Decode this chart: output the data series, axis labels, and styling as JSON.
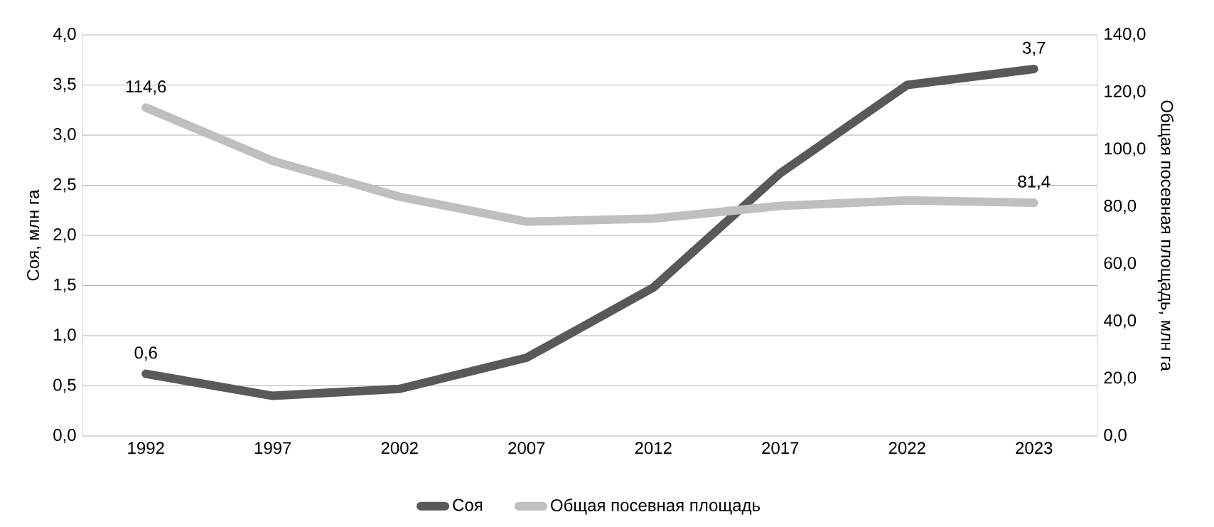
{
  "chart_data": {
    "type": "line",
    "categories": [
      "1992",
      "1997",
      "2002",
      "2007",
      "2012",
      "2017",
      "2022",
      "2023"
    ],
    "ylabel": "Соя, млн га",
    "y2label": "Общая посевная площадь, млн га",
    "ylim": [
      0,
      4
    ],
    "yticks": [
      {
        "value": 0,
        "label": "0,0"
      },
      {
        "value": 0.5,
        "label": "0,5"
      },
      {
        "value": 1,
        "label": "1,0"
      },
      {
        "value": 1.5,
        "label": "1,5"
      },
      {
        "value": 2,
        "label": "2,0"
      },
      {
        "value": 2.5,
        "label": "2,5"
      },
      {
        "value": 3,
        "label": "3,0"
      },
      {
        "value": 3.5,
        "label": "3,5"
      },
      {
        "value": 4,
        "label": "4,0"
      }
    ],
    "y2lim": [
      0,
      140
    ],
    "y2ticks": [
      {
        "value": 0,
        "label": "0,0"
      },
      {
        "value": 20,
        "label": "20,0"
      },
      {
        "value": 40,
        "label": "40,0"
      },
      {
        "value": 60,
        "label": "60,0"
      },
      {
        "value": 80,
        "label": "80,0"
      },
      {
        "value": 100,
        "label": "100,0"
      },
      {
        "value": 120,
        "label": "120,0"
      },
      {
        "value": 140,
        "label": "140,0"
      }
    ],
    "grid": "y",
    "legend": "bottom",
    "marker": "none",
    "line_style": "solid",
    "series": [
      {
        "name": "Соя",
        "color": "#595959",
        "values": [
          0.62,
          0.4,
          0.47,
          0.78,
          1.48,
          2.62,
          3.5,
          3.66
        ],
        "value_labels": [
          "0,6",
          null,
          null,
          null,
          null,
          null,
          null,
          "3,7"
        ]
      },
      {
        "name": "Общая посевная площадь",
        "color": "#bfbfbf",
        "axis": "y2",
        "values": [
          114.6,
          96,
          83.5,
          74.8,
          75.9,
          80.3,
          82.2,
          81.4
        ],
        "value_labels": [
          "114,6",
          null,
          null,
          null,
          null,
          null,
          null,
          "81,4"
        ]
      }
    ]
  }
}
